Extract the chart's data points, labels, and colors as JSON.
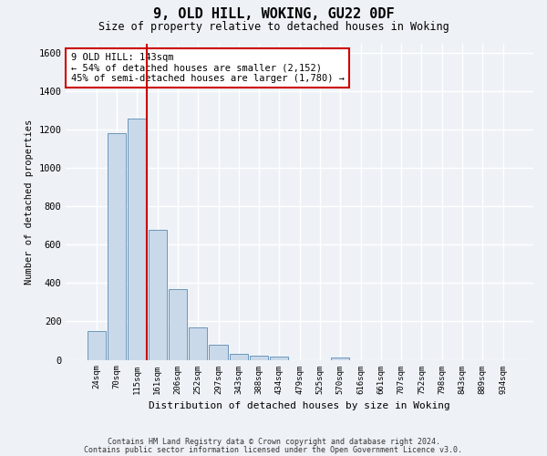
{
  "title_line1": "9, OLD HILL, WOKING, GU22 0DF",
  "title_line2": "Size of property relative to detached houses in Woking",
  "xlabel": "Distribution of detached houses by size in Woking",
  "ylabel": "Number of detached properties",
  "categories": [
    "24sqm",
    "70sqm",
    "115sqm",
    "161sqm",
    "206sqm",
    "252sqm",
    "297sqm",
    "343sqm",
    "388sqm",
    "434sqm",
    "479sqm",
    "525sqm",
    "570sqm",
    "616sqm",
    "661sqm",
    "707sqm",
    "752sqm",
    "798sqm",
    "843sqm",
    "889sqm",
    "934sqm"
  ],
  "values": [
    150,
    1180,
    1260,
    680,
    370,
    170,
    80,
    30,
    22,
    16,
    0,
    0,
    14,
    0,
    0,
    0,
    0,
    0,
    0,
    0,
    0
  ],
  "bar_color": "#c9d9ea",
  "bar_edge_color": "#5a8ab0",
  "vline_pos": 2.5,
  "vline_color": "#cc0000",
  "annotation_text": "9 OLD HILL: 143sqm\n← 54% of detached houses are smaller (2,152)\n45% of semi-detached houses are larger (1,780) →",
  "annotation_box_color": "white",
  "annotation_box_edge": "#cc0000",
  "ylim": [
    0,
    1650
  ],
  "yticks": [
    0,
    200,
    400,
    600,
    800,
    1000,
    1200,
    1400,
    1600
  ],
  "footer_line1": "Contains HM Land Registry data © Crown copyright and database right 2024.",
  "footer_line2": "Contains public sector information licensed under the Open Government Licence v3.0.",
  "bg_color": "#eef2f7",
  "grid_color": "white"
}
